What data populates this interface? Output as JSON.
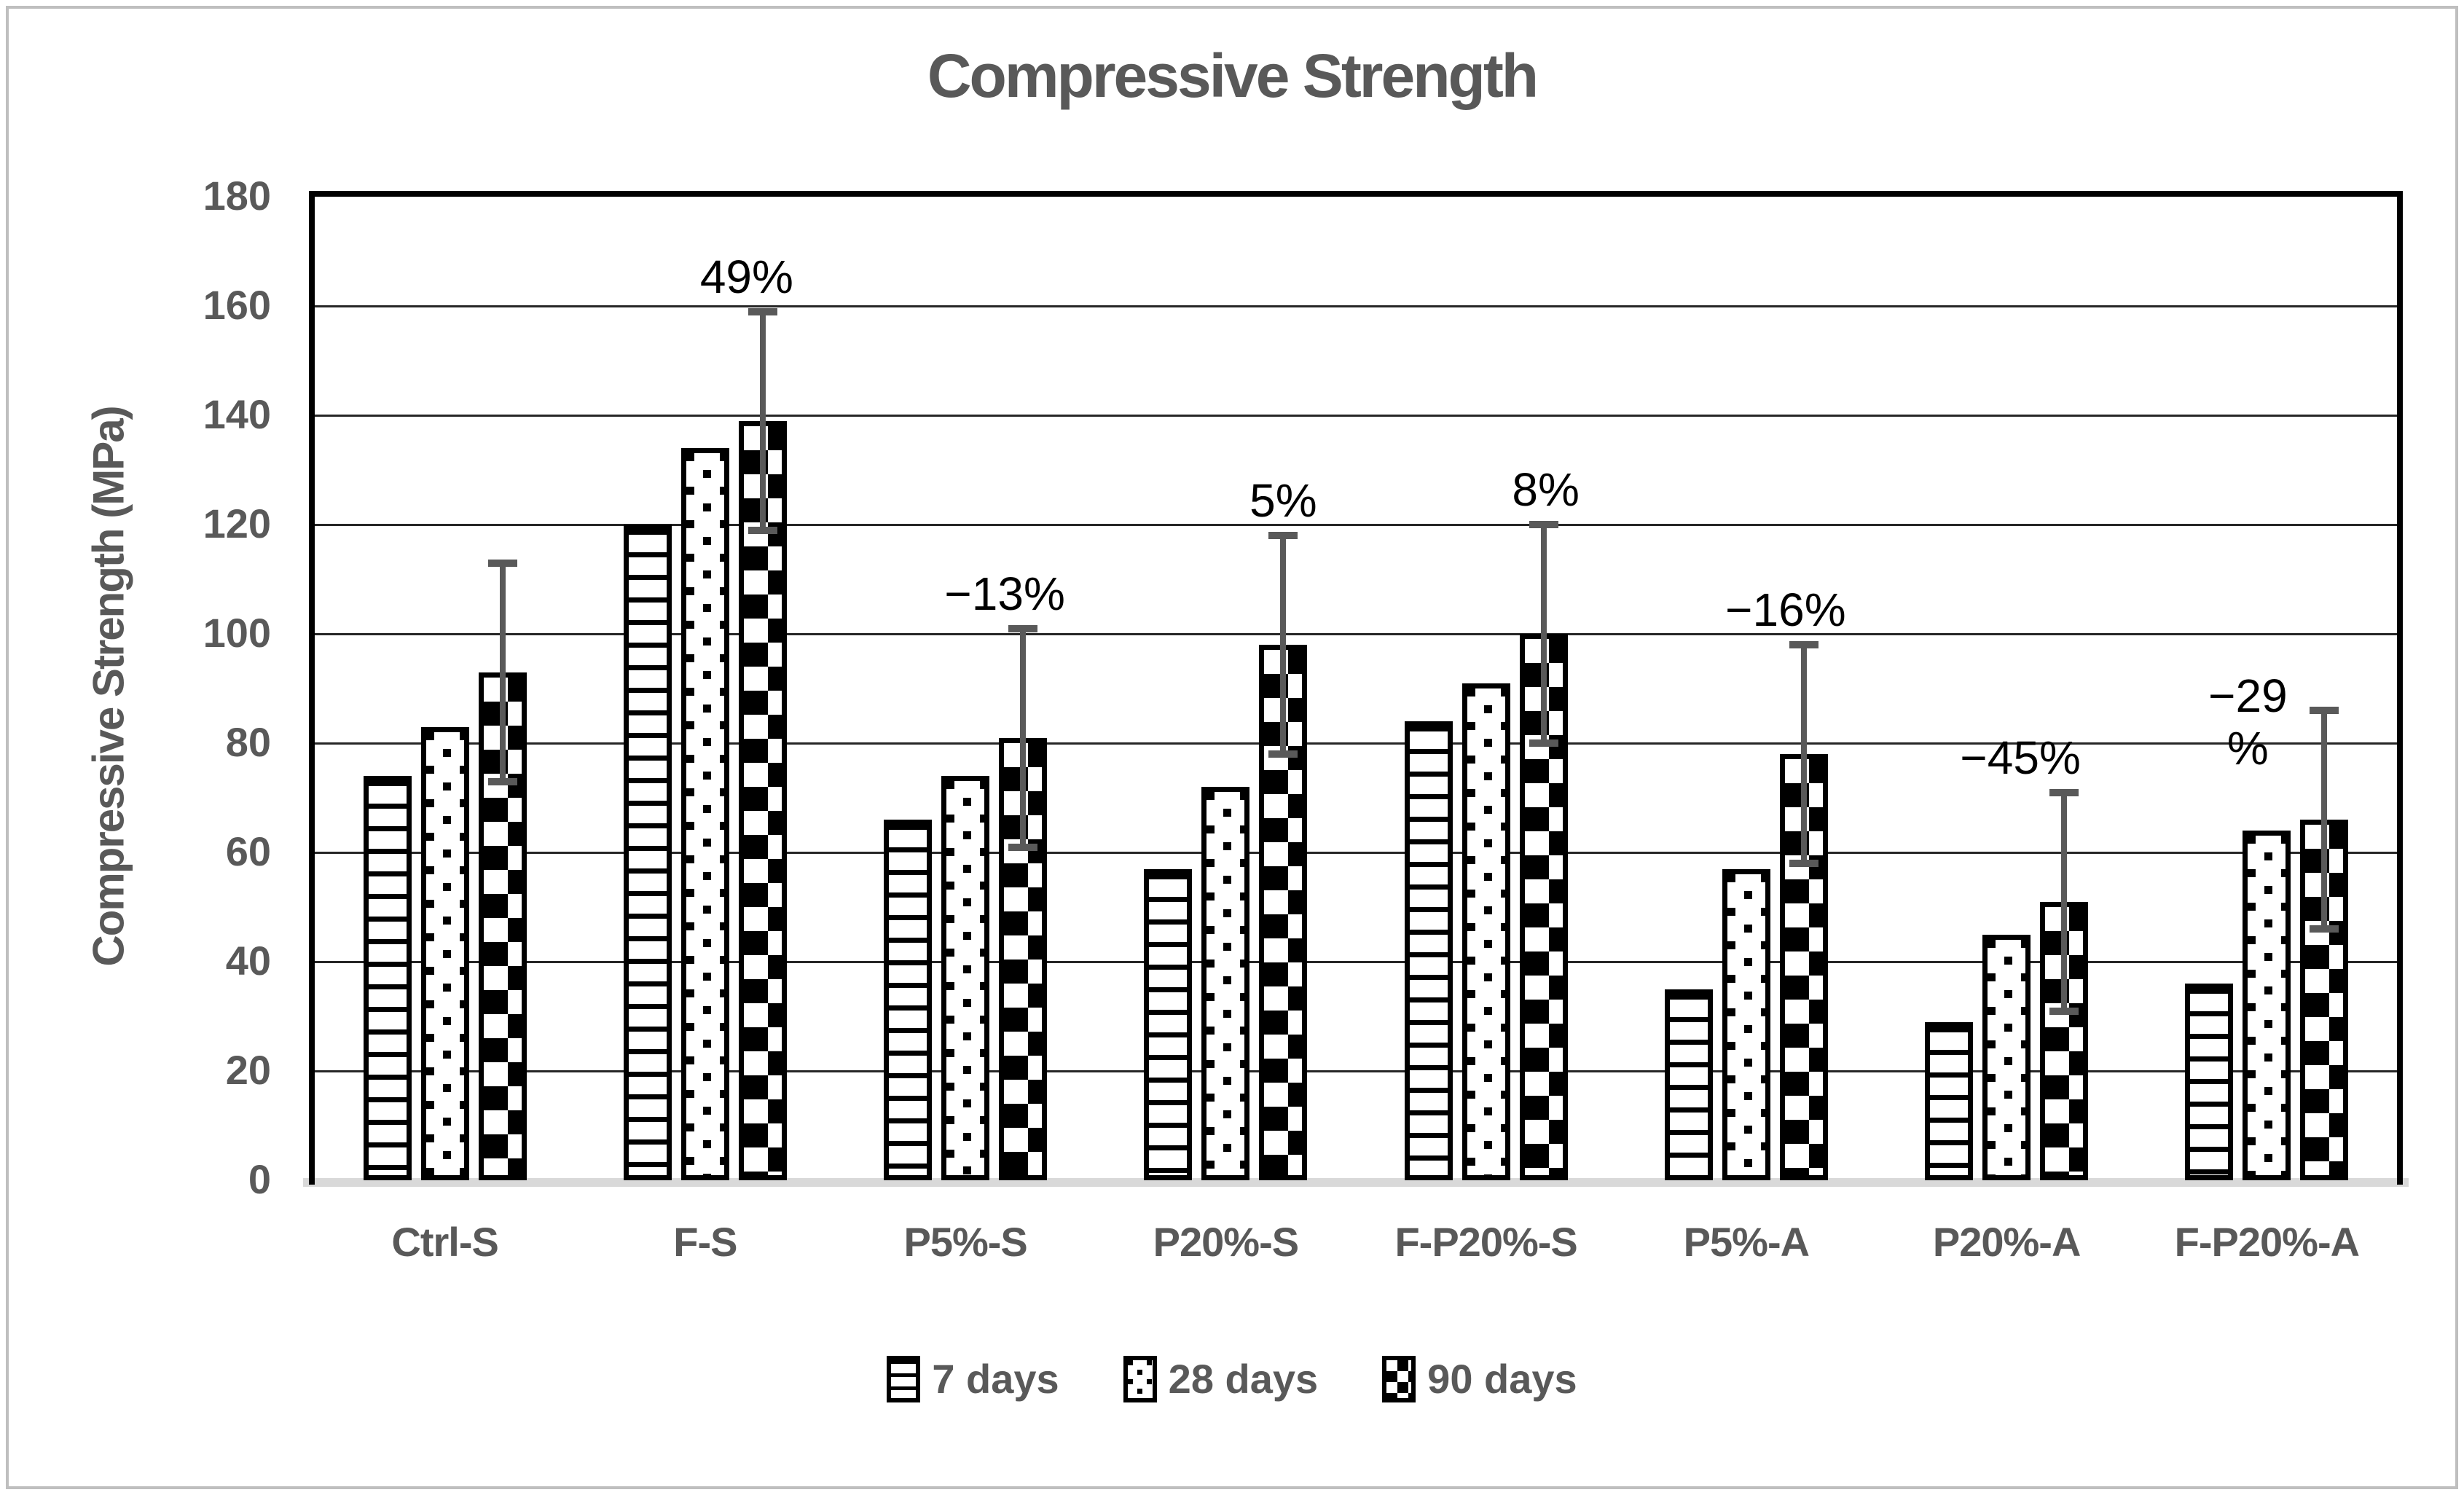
{
  "chart_data": {
    "type": "bar",
    "title": "Compressive Strength",
    "ylabel": "Compressive Strength (MPa)",
    "xlabel": "",
    "ylim": [
      0,
      180
    ],
    "yticks": [
      0,
      20,
      40,
      60,
      80,
      100,
      120,
      140,
      160,
      180
    ],
    "grid": true,
    "legend_position": "bottom",
    "categories": [
      "Ctrl-S",
      "F-S",
      "P5%-S",
      "P20%-S",
      "F-P20%-S",
      "P5%-A",
      "P20%-A",
      "F-P20%-A"
    ],
    "series": [
      {
        "name": "7 days",
        "pattern": "horizontal-stripes",
        "values": [
          74,
          120,
          66,
          57,
          84,
          35,
          29,
          36
        ]
      },
      {
        "name": "28 days",
        "pattern": "square-dots",
        "values": [
          83,
          134,
          74,
          72,
          91,
          57,
          45,
          64
        ]
      },
      {
        "name": "90 days",
        "pattern": "checkerboard",
        "values": [
          93,
          139,
          81,
          98,
          100,
          78,
          51,
          66
        ]
      }
    ],
    "error_bars": {
      "series": "90 days",
      "plus_minus": 20
    },
    "annotations": [
      {
        "category": "F-S",
        "label": "49%"
      },
      {
        "category": "P5%-S",
        "label": "−13%"
      },
      {
        "category": "P20%-S",
        "label": "5%"
      },
      {
        "category": "F-P20%-S",
        "label": "8%"
      },
      {
        "category": "P5%-A",
        "label": "−16%"
      },
      {
        "category": "P20%-A",
        "label": "−45%"
      },
      {
        "category": "F-P20%-A",
        "label": "−29\n%"
      }
    ],
    "colors": {
      "text_gray": "#595959",
      "gridline": "#262626",
      "plot_border": "#000000",
      "axis_baseline": "#d9d9d9",
      "error_bar": "#595959",
      "pattern_ink": "#000000",
      "figure_border": "#bfbfbf"
    }
  }
}
